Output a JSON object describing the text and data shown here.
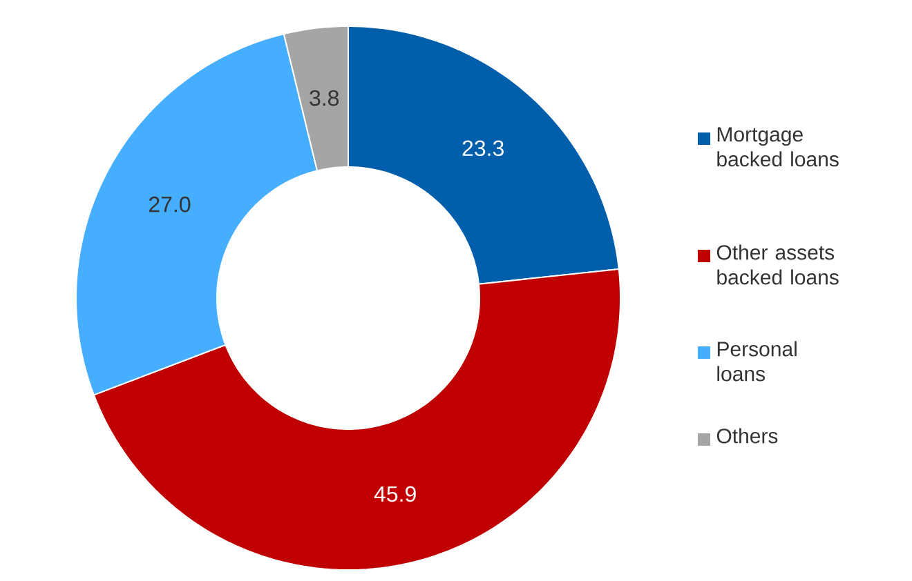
{
  "chart_data": {
    "type": "donut",
    "categories": [
      "Mortgage backed loans",
      "Other assets backed loans",
      "Personal loans",
      "Others"
    ],
    "values": [
      23.3,
      45.9,
      27.0,
      3.8
    ],
    "value_labels": [
      "23.3",
      "45.9",
      "27.0",
      "3.8"
    ],
    "colors": [
      "#005eaa",
      "#c00000",
      "#45aeff",
      "#a5a5a5"
    ],
    "legend": "right"
  }
}
